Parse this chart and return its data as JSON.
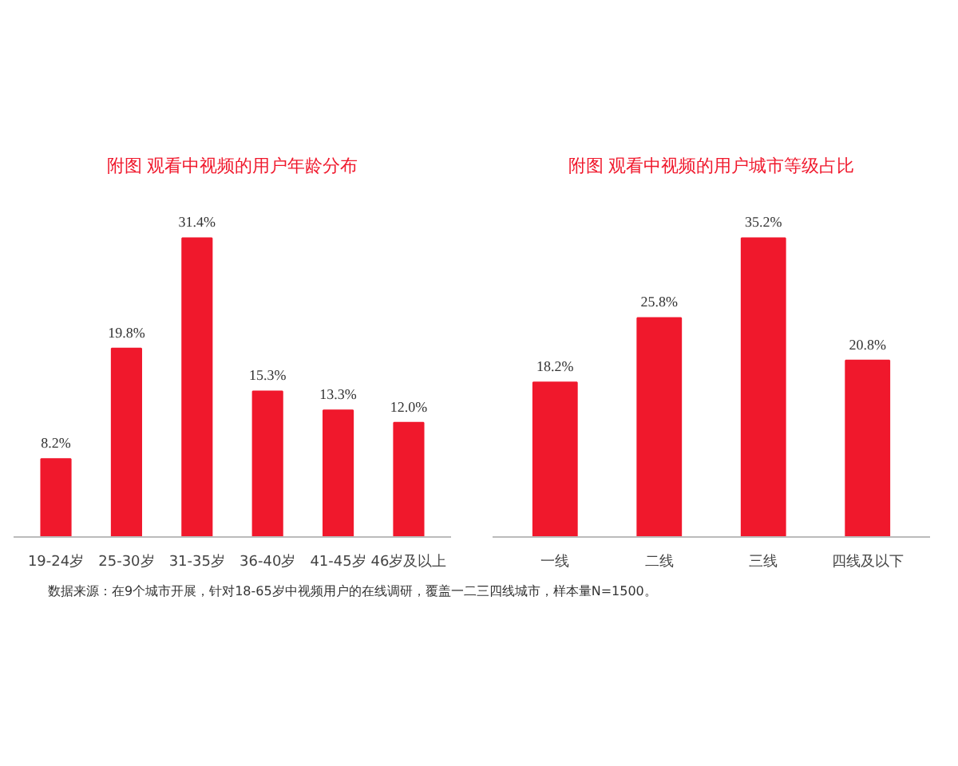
{
  "chart_data": [
    {
      "type": "bar",
      "title": "附图 观看中视频的用户年龄分布",
      "categories": [
        "19-24岁",
        "25-30岁",
        "31-35岁",
        "36-40岁",
        "41-45岁",
        "46岁及以上"
      ],
      "values": [
        8.2,
        19.8,
        31.4,
        15.3,
        13.3,
        12.0
      ],
      "value_labels": [
        "8.2%",
        "19.8%",
        "31.4%",
        "15.3%",
        "13.3%",
        "12.0%"
      ],
      "color": "#f0182c",
      "annotations": [
        "数据来源：在9个城市开展，针对18-65岁中视频用户的在线调研，覆盖一二三四线城市，样本量N=1500。"
      ]
    },
    {
      "type": "bar",
      "title": "附图 观看中视频的用户城市等级占比",
      "categories": [
        "一线",
        "二线",
        "三线",
        "四线及以下"
      ],
      "values": [
        18.2,
        25.8,
        35.2,
        20.8
      ],
      "value_labels": [
        "18.2%",
        "25.8%",
        "35.2%",
        "20.8%"
      ],
      "color": "#f0182c"
    }
  ]
}
